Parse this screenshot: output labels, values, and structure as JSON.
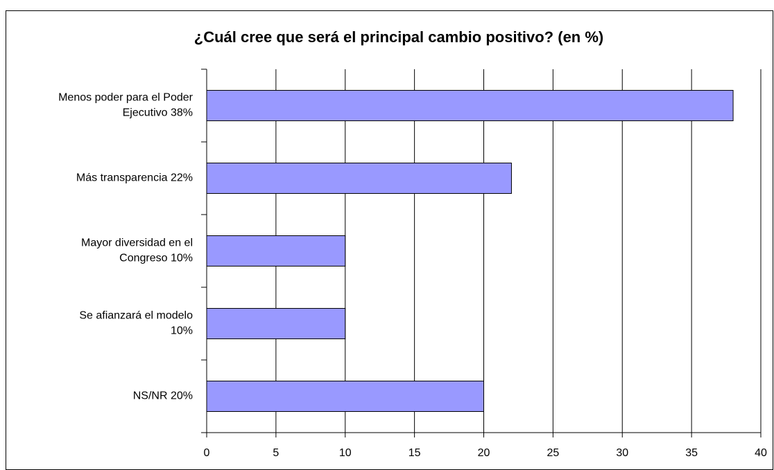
{
  "chart_data": {
    "type": "bar",
    "orientation": "horizontal",
    "title": "¿Cuál cree que será el principal cambio positivo? (en %)",
    "categories": [
      [
        "Menos poder para el Poder",
        "Ejecutivo  38%"
      ],
      [
        "Más transparencia  22%"
      ],
      [
        "Mayor diversidad en el",
        "Congreso  10%"
      ],
      [
        "Se afianzará el modelo",
        "10%"
      ],
      [
        "NS/NR  20%"
      ]
    ],
    "values": [
      38,
      22,
      10,
      10,
      20
    ],
    "color": "#9999ff",
    "xlim": [
      0,
      40
    ],
    "xticks": [
      0,
      5,
      10,
      15,
      20,
      25,
      30,
      35,
      40
    ],
    "grid": true
  }
}
